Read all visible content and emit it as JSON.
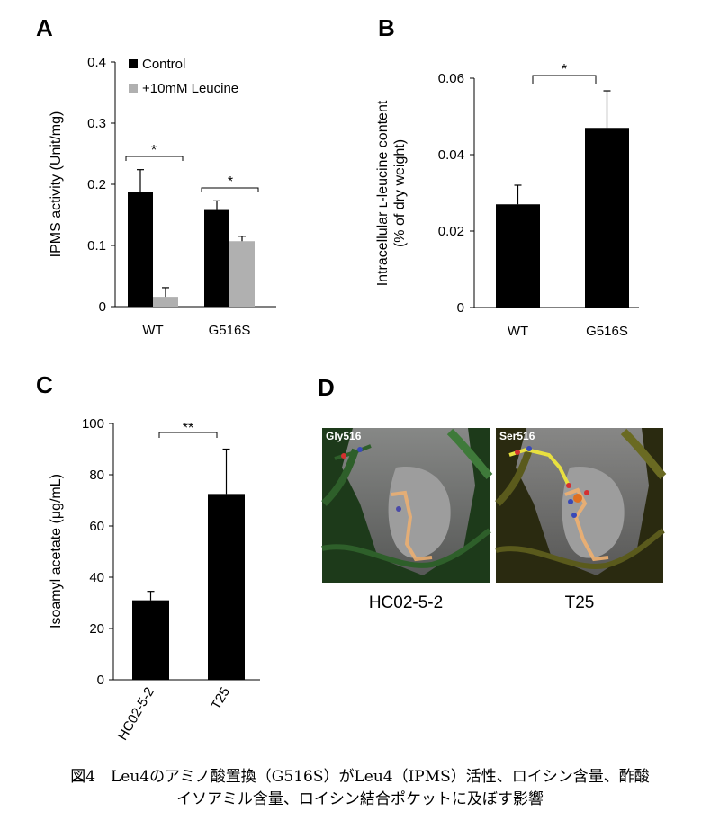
{
  "panels": {
    "A": {
      "letter": "A",
      "chart_data": {
        "type": "bar",
        "ylabel": "IPMS activity (Unit/mg)",
        "ylim": [
          0,
          0.4
        ],
        "yticks": [
          "0",
          "0.1",
          "0.2",
          "0.3",
          "0.4"
        ],
        "categories": [
          "WT",
          "G516S"
        ],
        "series": [
          {
            "name": "Control",
            "values": [
              0.187,
              0.158
            ],
            "errors": [
              0.037,
              0.015
            ],
            "color": "#000000"
          },
          {
            "name": "+10mM Leucine",
            "values": [
              0.016,
              0.107
            ],
            "errors": [
              0.015,
              0.008
            ],
            "color": "#b0b0b0"
          }
        ],
        "legend": "top-left",
        "significance": [
          "*",
          "*"
        ]
      }
    },
    "B": {
      "letter": "B",
      "chart_data": {
        "type": "bar",
        "ylabel_line1": "Intracellular ʟ-leucine content",
        "ylabel_line2": "(% of dry weight)",
        "ylim": [
          0,
          0.06
        ],
        "yticks": [
          "0",
          "0.02",
          "0.04",
          "0.06"
        ],
        "categories": [
          "WT",
          "G516S"
        ],
        "values": [
          0.027,
          0.047
        ],
        "errors": [
          0.005,
          0.0097
        ],
        "color": "#000000",
        "significance": "*"
      }
    },
    "C": {
      "letter": "C",
      "chart_data": {
        "type": "bar",
        "ylabel": "Isoamyl acetate (μg/mL)",
        "ylim": [
          0,
          100
        ],
        "yticks": [
          "0",
          "20",
          "40",
          "60",
          "80",
          "100"
        ],
        "categories": [
          "HC02-5-2",
          "T25"
        ],
        "values": [
          31,
          72.5
        ],
        "errors": [
          3.5,
          17.5
        ],
        "color": "#000000",
        "significance": "**"
      }
    },
    "D": {
      "letter": "D",
      "images": [
        {
          "residue": "Gly516",
          "label": "HC02-5-2",
          "ribbon_color": "#2e5f2a"
        },
        {
          "residue": "Ser516",
          "label": "T25",
          "ribbon_color": "#5a5a1c"
        }
      ]
    }
  },
  "caption": {
    "line1": "図4　Leu4のアミノ酸置換（G516S）がLeu4（IPMS）活性、ロイシン含量、酢酸",
    "line2": "イソアミル含量、ロイシン結合ポケットに及ぼす影響"
  }
}
